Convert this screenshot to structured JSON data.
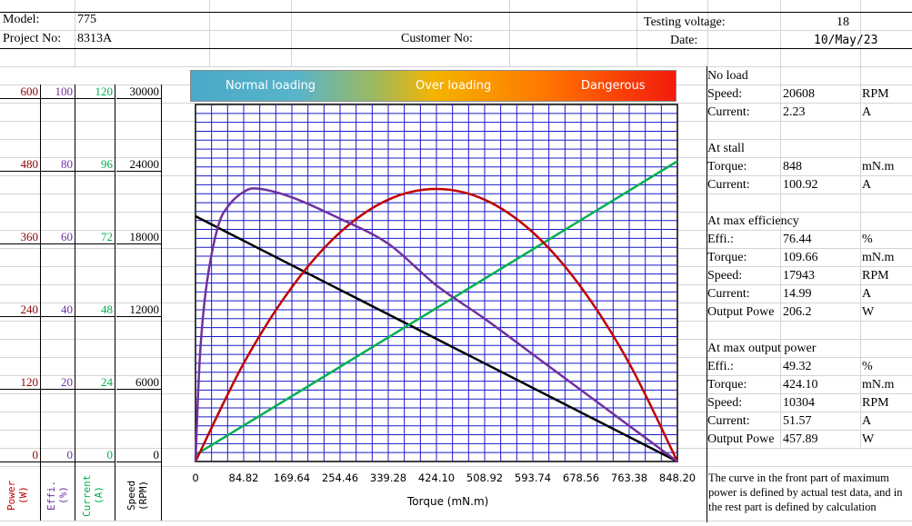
{
  "header": {
    "model_label": "Model:",
    "model_value": "775",
    "project_label": "Project No:",
    "project_value": "8313A",
    "customer_label": "Customer No:",
    "testing_voltage_label": "Testing voltage:",
    "testing_voltage_value": "18",
    "date_label": "Date:",
    "date_value": "10/May/23"
  },
  "banner": {
    "normal": "Normal loading",
    "over": "Over loading",
    "danger": "Dangerous"
  },
  "panel": {
    "no_load": {
      "title": "No load",
      "speed_label": "Speed:",
      "speed": "20608",
      "speed_unit": "RPM",
      "current_label": "Current:",
      "current": "2.23",
      "current_unit": "A"
    },
    "stall": {
      "title": "At stall",
      "torque_label": "Torque:",
      "torque": "848",
      "torque_unit": "mN.m",
      "current_label": "Current:",
      "current": "100.92",
      "current_unit": "A"
    },
    "max_eff": {
      "title": "At max efficiency",
      "eff_label": "Effi.:",
      "eff": "76.44",
      "eff_unit": "%",
      "torque_label": "Torque:",
      "torque": "109.66",
      "torque_unit": "mN.m",
      "speed_label": "Speed:",
      "speed": "17943",
      "speed_unit": "RPM",
      "current_label": "Current:",
      "current": "14.99",
      "current_unit": "A",
      "power_label": "Output Powe",
      "power": "206.2",
      "power_unit": "W"
    },
    "max_power": {
      "title": "At max output power",
      "eff_label": "Effi.:",
      "eff": "49.32",
      "eff_unit": "%",
      "torque_label": "Torque:",
      "torque": "424.10",
      "torque_unit": "mN.m",
      "speed_label": "Speed:",
      "speed": "10304",
      "speed_unit": "RPM",
      "current_label": "Current:",
      "current": "51.57",
      "current_unit": "A",
      "power_label": "Output Powe",
      "power": "457.89",
      "power_unit": "W"
    },
    "note": "The curve in the front part of maximum power is defined by actual test data, and in the rest part is defined by calculation"
  },
  "chart_data": {
    "type": "line",
    "xlabel": "Torque (mN.m)",
    "x_ticks": [
      "0",
      "84.82",
      "169.64",
      "254.46",
      "339.28",
      "424.10",
      "508.92",
      "593.74",
      "678.56",
      "763.38",
      "848.20"
    ],
    "xlim": [
      0,
      848.2
    ],
    "axes": [
      {
        "name": "Power",
        "unit": "(W)",
        "ticks": [
          "0",
          "120",
          "240",
          "360",
          "480",
          "600"
        ],
        "range": [
          0,
          600
        ],
        "color": "#8b0000"
      },
      {
        "name": "Effi.",
        "unit": "(%)",
        "ticks": [
          "0",
          "20",
          "40",
          "60",
          "80",
          "100"
        ],
        "range": [
          0,
          100
        ],
        "color": "#7030a0"
      },
      {
        "name": "Current",
        "unit": "(A)",
        "ticks": [
          "0",
          "24",
          "48",
          "72",
          "96",
          "120"
        ],
        "range": [
          0,
          120
        ],
        "color": "#00b050"
      },
      {
        "name": "Speed",
        "unit": "(RPM)",
        "ticks": [
          "0",
          "6000",
          "12000",
          "18000",
          "24000",
          "30000"
        ],
        "range": [
          0,
          30000
        ],
        "color": "#000000"
      }
    ],
    "series": [
      {
        "axis": "Speed",
        "color": "#000000",
        "x": [
          0,
          848.2
        ],
        "y": [
          20608,
          0
        ]
      },
      {
        "axis": "Current",
        "color": "#00b050",
        "x": [
          0,
          848.2
        ],
        "y": [
          2.23,
          100.92
        ]
      },
      {
        "axis": "Power",
        "color": "#c00000",
        "x": [
          0,
          84.82,
          169.64,
          254.46,
          339.28,
          424.1,
          508.92,
          593.74,
          678.56,
          763.38,
          848.2
        ],
        "y": [
          0,
          165,
          293,
          385,
          440,
          458,
          440,
          385,
          293,
          165,
          0
        ]
      },
      {
        "axis": "Effi.",
        "color": "#7030a0",
        "x": [
          0,
          8,
          20,
          40,
          60,
          84.82,
          109.66,
          169.64,
          254.46,
          339.28,
          424.1,
          508.92,
          593.74,
          678.56,
          763.38,
          848.2
        ],
        "y": [
          0,
          30,
          50,
          66,
          72,
          75.5,
          76.44,
          74,
          68,
          61,
          49.32,
          40,
          30,
          20,
          10,
          0
        ]
      }
    ],
    "grid": true
  }
}
